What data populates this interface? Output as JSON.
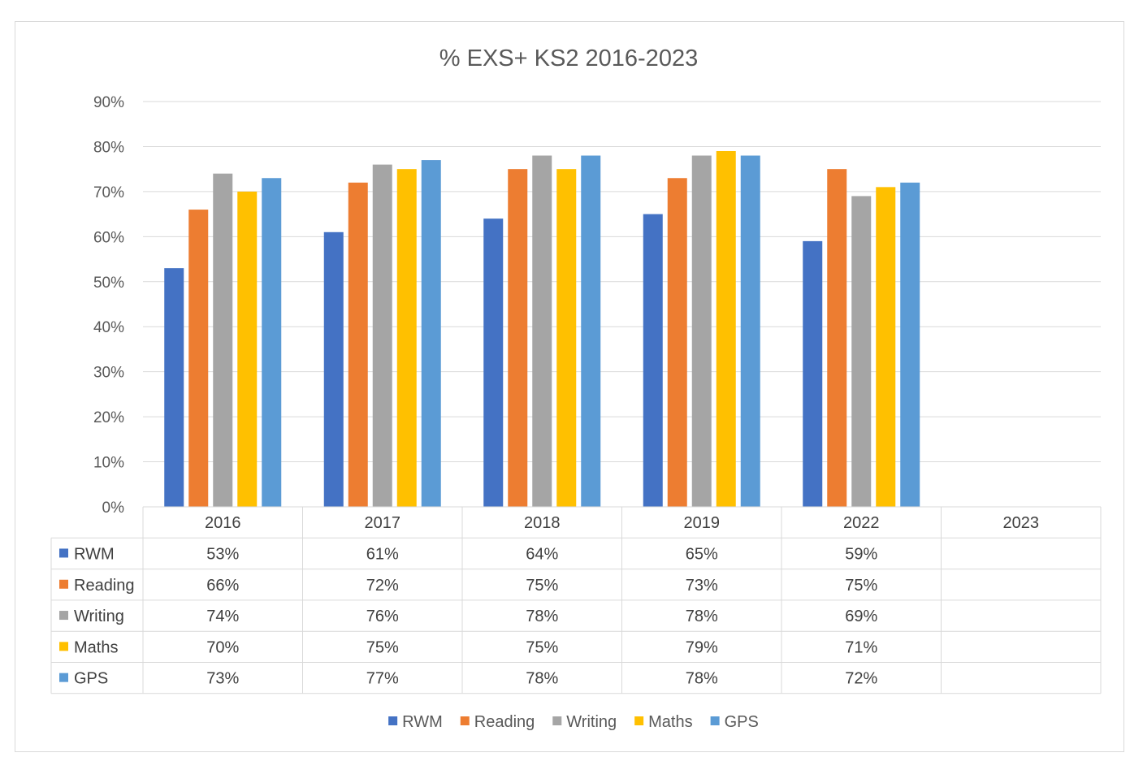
{
  "chart_data": {
    "type": "bar",
    "title": "% EXS+ KS2 2016-2023",
    "categories": [
      "2016",
      "2017",
      "2018",
      "2019",
      "2022",
      "2023"
    ],
    "ylim": [
      0,
      90
    ],
    "ytick_step": 10,
    "ytick_suffix": "%",
    "grid": true,
    "legend_position": "bottom",
    "data_table": true,
    "series": [
      {
        "name": "RWM",
        "color": "#4472C4",
        "values": [
          53,
          61,
          64,
          65,
          59,
          null
        ]
      },
      {
        "name": "Reading",
        "color": "#ED7D31",
        "values": [
          66,
          72,
          75,
          73,
          75,
          null
        ]
      },
      {
        "name": "Writing",
        "color": "#A5A5A5",
        "values": [
          74,
          76,
          78,
          78,
          69,
          null
        ]
      },
      {
        "name": "Maths",
        "color": "#FFC000",
        "values": [
          70,
          75,
          75,
          79,
          71,
          null
        ]
      },
      {
        "name": "GPS",
        "color": "#5B9BD5",
        "values": [
          73,
          77,
          78,
          78,
          72,
          null
        ]
      }
    ]
  }
}
